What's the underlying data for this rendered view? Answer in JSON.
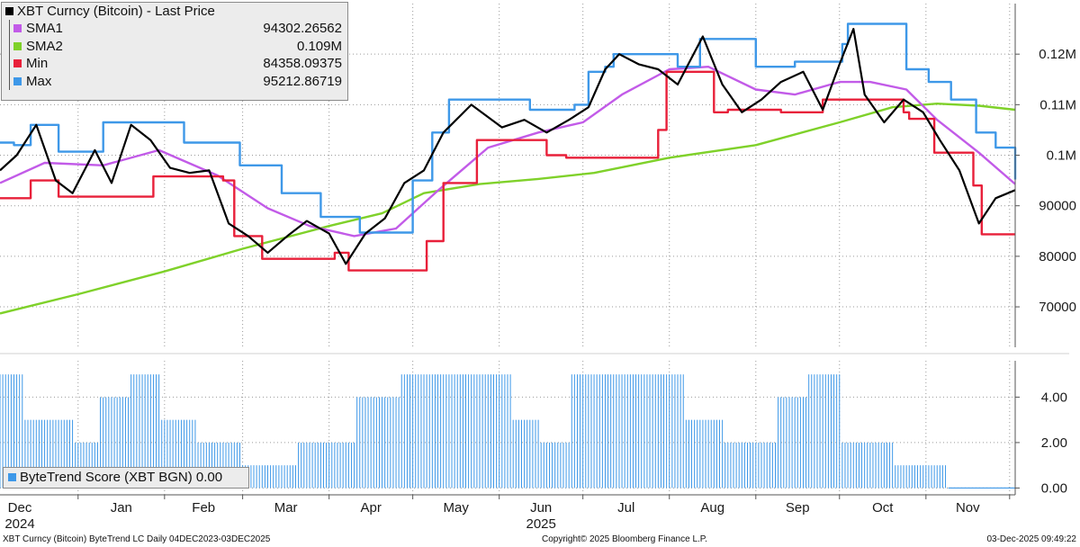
{
  "chart_data": {
    "type": "line",
    "title": "XBT Curncy (Bitcoin) - Last Price",
    "price_panel": {
      "ylim": [
        62000,
        130000
      ],
      "y_ticks": [
        {
          "value": 70000,
          "label": "70000"
        },
        {
          "value": 80000,
          "label": "80000"
        },
        {
          "value": 90000,
          "label": "90000"
        },
        {
          "value": 100000,
          "label": "0.1M"
        },
        {
          "value": 110000,
          "label": "0.11M"
        },
        {
          "value": 120000,
          "label": "0.12M"
        }
      ],
      "x_months": [
        "Dec",
        "Jan",
        "Feb",
        "Mar",
        "Apr",
        "May",
        "Jun",
        "Jul",
        "Aug",
        "Sep",
        "Oct",
        "Nov"
      ],
      "x_years": [
        "2024",
        "2025"
      ],
      "x_start": "2024-12-04",
      "x_end": "2025-12-03",
      "series": [
        {
          "name": "XBT Curncy (Bitcoin) - Last Price",
          "color": "#000000",
          "x": [
            "2024-12-04",
            "2024-12-10",
            "2024-12-17",
            "2024-12-24",
            "2024-12-30",
            "2025-01-07",
            "2025-01-13",
            "2025-01-20",
            "2025-01-27",
            "2025-02-03",
            "2025-02-10",
            "2025-02-17",
            "2025-02-24",
            "2025-03-03",
            "2025-03-10",
            "2025-03-17",
            "2025-03-24",
            "2025-04-01",
            "2025-04-07",
            "2025-04-14",
            "2025-04-21",
            "2025-04-28",
            "2025-05-05",
            "2025-05-12",
            "2025-05-22",
            "2025-06-02",
            "2025-06-10",
            "2025-06-18",
            "2025-06-26",
            "2025-07-03",
            "2025-07-09",
            "2025-07-14",
            "2025-07-21",
            "2025-07-28",
            "2025-08-04",
            "2025-08-13",
            "2025-08-20",
            "2025-08-27",
            "2025-09-03",
            "2025-09-10",
            "2025-09-18",
            "2025-09-25",
            "2025-10-01",
            "2025-10-06",
            "2025-10-10",
            "2025-10-17",
            "2025-10-24",
            "2025-10-31",
            "2025-11-06",
            "2025-11-13",
            "2025-11-20",
            "2025-11-26",
            "2025-12-03"
          ],
          "values": [
            97000,
            100000,
            106000,
            95000,
            92500,
            101000,
            94500,
            106000,
            103000,
            97500,
            96500,
            97000,
            86500,
            84000,
            80700,
            84000,
            87000,
            84500,
            78500,
            84500,
            87500,
            94500,
            97000,
            104500,
            110000,
            105500,
            107000,
            104500,
            107000,
            109500,
            117000,
            120000,
            118000,
            117000,
            114000,
            123500,
            114000,
            108500,
            111000,
            114500,
            116500,
            109000,
            118000,
            125000,
            112000,
            106500,
            111000,
            108500,
            103000,
            97000,
            86500,
            91500,
            93100
          ]
        },
        {
          "name": "SMA1",
          "value_label": "94302.26562",
          "color": "#c25be8",
          "x": [
            "2024-12-04",
            "2024-12-20",
            "2025-01-10",
            "2025-01-30",
            "2025-02-20",
            "2025-03-10",
            "2025-03-25",
            "2025-04-10",
            "2025-04-25",
            "2025-05-10",
            "2025-05-28",
            "2025-06-15",
            "2025-07-01",
            "2025-07-15",
            "2025-08-01",
            "2025-08-15",
            "2025-09-01",
            "2025-09-15",
            "2025-10-01",
            "2025-10-12",
            "2025-10-25",
            "2025-11-05",
            "2025-11-20",
            "2025-12-03"
          ],
          "values": [
            94500,
            98500,
            98000,
            101000,
            96000,
            89500,
            86000,
            84000,
            85500,
            93000,
            101500,
            104500,
            106500,
            112000,
            117000,
            117500,
            113000,
            112000,
            114500,
            114500,
            113000,
            107000,
            100500,
            94300
          ]
        },
        {
          "name": "SMA2",
          "value_label": "0.109M",
          "color": "#7fd12a",
          "x": [
            "2024-12-04",
            "2025-01-01",
            "2025-02-01",
            "2025-03-01",
            "2025-04-01",
            "2025-04-20",
            "2025-05-05",
            "2025-05-25",
            "2025-06-15",
            "2025-07-05",
            "2025-08-01",
            "2025-09-01",
            "2025-10-01",
            "2025-10-20",
            "2025-11-05",
            "2025-11-20",
            "2025-12-03"
          ],
          "values": [
            68700,
            72500,
            77000,
            81500,
            86000,
            88500,
            92500,
            94300,
            95300,
            96500,
            99500,
            102000,
            106500,
            109500,
            110200,
            109800,
            109000
          ]
        },
        {
          "name": "Min",
          "value_label": "84358.09375",
          "color": "#e8203a",
          "x": [
            "2024-12-04",
            "2024-12-09",
            "2024-12-15",
            "2024-12-25",
            "2025-01-20",
            "2025-01-28",
            "2025-02-22",
            "2025-02-26",
            "2025-03-01",
            "2025-03-08",
            "2025-03-30",
            "2025-04-03",
            "2025-04-08",
            "2025-04-30",
            "2025-05-06",
            "2025-05-12",
            "2025-05-24",
            "2025-06-05",
            "2025-06-18",
            "2025-06-25",
            "2025-07-12",
            "2025-07-28",
            "2025-07-31",
            "2025-08-17",
            "2025-08-22",
            "2025-09-10",
            "2025-09-25",
            "2025-10-24",
            "2025-10-26",
            "2025-11-04",
            "2025-11-10",
            "2025-11-18",
            "2025-11-21",
            "2025-12-03"
          ],
          "values": [
            91500,
            91500,
            95000,
            91800,
            91800,
            95800,
            95000,
            84000,
            84000,
            79500,
            79500,
            80700,
            77200,
            77200,
            83000,
            94500,
            103000,
            103000,
            100000,
            99500,
            99500,
            105000,
            116500,
            108500,
            109000,
            108500,
            111000,
            108500,
            107200,
            100500,
            100500,
            94000,
            84350,
            84350
          ]
        },
        {
          "name": "Max",
          "value_label": "95212.86719",
          "color": "#3e98e8",
          "x": [
            "2024-12-04",
            "2024-12-09",
            "2024-12-15",
            "2024-12-25",
            "2025-01-05",
            "2025-01-10",
            "2025-02-03",
            "2025-02-08",
            "2025-02-22",
            "2025-02-28",
            "2025-03-15",
            "2025-03-29",
            "2025-04-08",
            "2025-04-12",
            "2025-04-24",
            "2025-05-01",
            "2025-05-08",
            "2025-05-14",
            "2025-06-08",
            "2025-06-12",
            "2025-06-28",
            "2025-07-03",
            "2025-07-09",
            "2025-07-12",
            "2025-07-21",
            "2025-08-04",
            "2025-08-12",
            "2025-08-25",
            "2025-09-01",
            "2025-09-05",
            "2025-09-15",
            "2025-09-25",
            "2025-10-02",
            "2025-10-04",
            "2025-10-12",
            "2025-10-18",
            "2025-10-25",
            "2025-11-02",
            "2025-11-10",
            "2025-11-19",
            "2025-11-26",
            "2025-12-03"
          ],
          "values": [
            102500,
            102000,
            106000,
            100700,
            100700,
            106500,
            106500,
            102500,
            102500,
            98000,
            92500,
            87800,
            87800,
            84700,
            84700,
            95000,
            104500,
            111000,
            111000,
            109000,
            110000,
            116500,
            117500,
            120000,
            120000,
            117500,
            123000,
            123000,
            117500,
            117500,
            118500,
            118500,
            122000,
            126000,
            126000,
            126000,
            117000,
            114500,
            111000,
            104500,
            101500,
            95200
          ]
        }
      ]
    },
    "score_panel": {
      "series_name": "ByteTrend Score (XBT BGN) 0.00",
      "color": "#3e98e8",
      "ylim": [
        -0.3,
        5.6
      ],
      "y_ticks": [
        {
          "value": 0,
          "label": "0.00"
        },
        {
          "value": 2,
          "label": "2.00"
        },
        {
          "value": 4,
          "label": "4.00"
        }
      ],
      "segments": [
        {
          "start": "2024-12-04",
          "end": "2024-12-12",
          "value": 5
        },
        {
          "start": "2024-12-13",
          "end": "2024-12-30",
          "value": 3
        },
        {
          "start": "2024-12-31",
          "end": "2025-01-08",
          "value": 2
        },
        {
          "start": "2025-01-09",
          "end": "2025-01-19",
          "value": 4
        },
        {
          "start": "2025-01-20",
          "end": "2025-01-30",
          "value": 5
        },
        {
          "start": "2025-01-31",
          "end": "2025-02-12",
          "value": 3
        },
        {
          "start": "2025-02-13",
          "end": "2025-02-28",
          "value": 2
        },
        {
          "start": "2025-03-01",
          "end": "2025-03-20",
          "value": 1
        },
        {
          "start": "2025-03-21",
          "end": "2025-04-10",
          "value": 2
        },
        {
          "start": "2025-04-11",
          "end": "2025-04-26",
          "value": 4
        },
        {
          "start": "2025-04-27",
          "end": "2025-06-05",
          "value": 5
        },
        {
          "start": "2025-06-06",
          "end": "2025-06-15",
          "value": 3
        },
        {
          "start": "2025-06-16",
          "end": "2025-06-26",
          "value": 2
        },
        {
          "start": "2025-06-27",
          "end": "2025-08-06",
          "value": 5
        },
        {
          "start": "2025-08-07",
          "end": "2025-08-20",
          "value": 3
        },
        {
          "start": "2025-08-21",
          "end": "2025-09-08",
          "value": 2
        },
        {
          "start": "2025-09-09",
          "end": "2025-09-19",
          "value": 4
        },
        {
          "start": "2025-09-20",
          "end": "2025-10-01",
          "value": 5
        },
        {
          "start": "2025-10-02",
          "end": "2025-10-20",
          "value": 2
        },
        {
          "start": "2025-10-21",
          "end": "2025-11-08",
          "value": 1
        },
        {
          "start": "2025-11-09",
          "end": "2025-12-03",
          "value": 0
        }
      ]
    }
  },
  "footer": {
    "left": "XBT Curncy (Bitcoin) ByteTrend LC Daily 04DEC2023-03DEC2025",
    "center": "Copyright© 2025 Bloomberg Finance L.P.",
    "right": "03-Dec-2025 09:49:22"
  }
}
